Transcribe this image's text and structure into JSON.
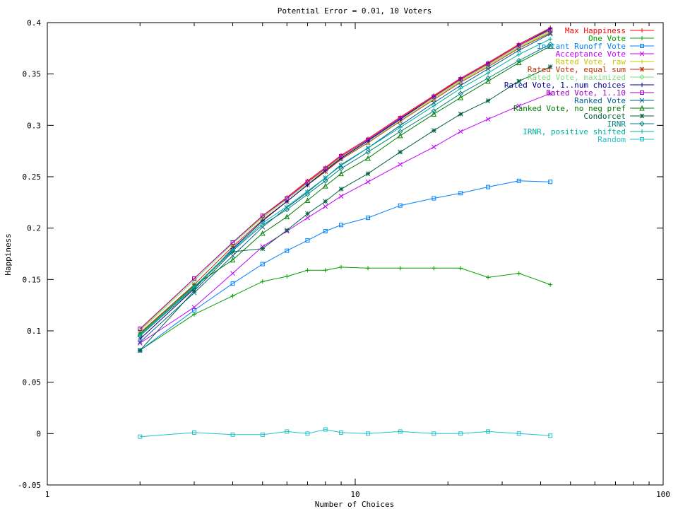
{
  "chart_data": {
    "type": "line",
    "title": "Potential Error = 0.01, 10 Voters",
    "xlabel": "Number of Choices",
    "ylabel": "Happiness",
    "xscale": "log",
    "xlim": [
      1,
      100
    ],
    "ylim": [
      -0.05,
      0.4
    ],
    "xticks": [
      1,
      10,
      100
    ],
    "yticks": [
      -0.05,
      0,
      0.05,
      0.1,
      0.15,
      0.2,
      0.25,
      0.3,
      0.35,
      0.4
    ],
    "grid": false,
    "legend_position": "top-right",
    "x": [
      2,
      3,
      4,
      5,
      6,
      7,
      8,
      9,
      11,
      14,
      18,
      22,
      27,
      34,
      43
    ],
    "series": [
      {
        "name": "Max Happiness",
        "color": "#ff0000",
        "marker": "plus",
        "values": [
          0.101,
          0.151,
          0.186,
          0.212,
          0.23,
          0.246,
          0.259,
          0.271,
          0.287,
          0.308,
          0.329,
          0.346,
          0.361,
          0.379,
          0.395
        ]
      },
      {
        "name": "One Vote",
        "color": "#00a000",
        "marker": "plus",
        "values": [
          0.081,
          0.116,
          0.134,
          0.148,
          0.153,
          0.159,
          0.159,
          0.162,
          0.161,
          0.161,
          0.161,
          0.161,
          0.152,
          0.156,
          0.145
        ]
      },
      {
        "name": "Instant Runoff Vote",
        "color": "#0080ff",
        "marker": "square",
        "values": [
          0.081,
          0.12,
          0.146,
          0.165,
          0.178,
          0.188,
          0.197,
          0.203,
          0.21,
          0.222,
          0.229,
          0.234,
          0.24,
          0.246,
          0.245
        ]
      },
      {
        "name": "Acceptance Vote",
        "color": "#c000ff",
        "marker": "x",
        "values": [
          0.088,
          0.123,
          0.156,
          0.182,
          0.197,
          0.21,
          0.221,
          0.231,
          0.245,
          0.262,
          0.279,
          0.294,
          0.306,
          0.319,
          0.331
        ]
      },
      {
        "name": "Rated Vote, raw",
        "color": "#c8c800",
        "marker": "plus",
        "values": [
          0.101,
          0.151,
          0.186,
          0.211,
          0.229,
          0.244,
          0.257,
          0.269,
          0.285,
          0.306,
          0.327,
          0.344,
          0.359,
          0.377,
          0.392
        ]
      },
      {
        "name": "Rated Vote, equal sum",
        "color": "#c03000",
        "marker": "star",
        "values": [
          0.098,
          0.145,
          0.182,
          0.208,
          0.226,
          0.242,
          0.255,
          0.267,
          0.283,
          0.304,
          0.325,
          0.342,
          0.357,
          0.375,
          0.39
        ]
      },
      {
        "name": "Rated Vote, maximized",
        "color": "#80e080",
        "marker": "diamond",
        "values": [
          0.1,
          0.149,
          0.185,
          0.21,
          0.228,
          0.243,
          0.256,
          0.268,
          0.284,
          0.305,
          0.326,
          0.343,
          0.358,
          0.376,
          0.391
        ]
      },
      {
        "name": "Rated Vote, 1..num choices",
        "color": "#000090",
        "marker": "plus",
        "values": [
          0.092,
          0.141,
          0.18,
          0.207,
          0.226,
          0.242,
          0.256,
          0.268,
          0.285,
          0.306,
          0.328,
          0.345,
          0.36,
          0.378,
          0.394
        ]
      },
      {
        "name": "Rated Vote, 1..10",
        "color": "#a000c0",
        "marker": "square",
        "values": [
          0.102,
          0.151,
          0.186,
          0.212,
          0.229,
          0.245,
          0.258,
          0.27,
          0.286,
          0.307,
          0.328,
          0.345,
          0.36,
          0.378,
          0.393
        ]
      },
      {
        "name": "Ranked Vote",
        "color": "#006090",
        "marker": "x",
        "values": [
          0.089,
          0.137,
          0.173,
          0.201,
          0.22,
          0.235,
          0.249,
          0.261,
          0.278,
          0.3,
          0.322,
          0.339,
          0.355,
          0.373,
          0.389
        ]
      },
      {
        "name": "Ranked Vote, no neg pref",
        "color": "#008000",
        "marker": "triangle",
        "values": [
          0.097,
          0.144,
          0.169,
          0.195,
          0.211,
          0.227,
          0.241,
          0.253,
          0.268,
          0.29,
          0.311,
          0.327,
          0.343,
          0.361,
          0.377
        ]
      },
      {
        "name": "Condorcet",
        "color": "#006040",
        "marker": "star",
        "values": [
          0.081,
          0.139,
          0.177,
          0.18,
          0.198,
          0.214,
          0.226,
          0.238,
          0.253,
          0.274,
          0.295,
          0.311,
          0.324,
          0.343,
          0.357
        ]
      },
      {
        "name": "IRNR",
        "color": "#008080",
        "marker": "diamond",
        "values": [
          0.095,
          0.142,
          0.178,
          0.203,
          0.218,
          0.233,
          0.246,
          0.258,
          0.274,
          0.294,
          0.314,
          0.331,
          0.346,
          0.363,
          0.379
        ]
      },
      {
        "name": "IRNR, positive shifted",
        "color": "#00b0a0",
        "marker": "plus",
        "values": [
          0.096,
          0.143,
          0.179,
          0.205,
          0.221,
          0.236,
          0.249,
          0.262,
          0.278,
          0.298,
          0.319,
          0.336,
          0.351,
          0.369,
          0.384
        ]
      },
      {
        "name": "Random",
        "color": "#20c0c8",
        "marker": "square",
        "values": [
          -0.003,
          0.001,
          -0.001,
          -0.001,
          0.002,
          0.0,
          0.004,
          0.001,
          0.0,
          0.002,
          0.0,
          0.0,
          0.002,
          0.0,
          -0.002
        ]
      }
    ]
  }
}
